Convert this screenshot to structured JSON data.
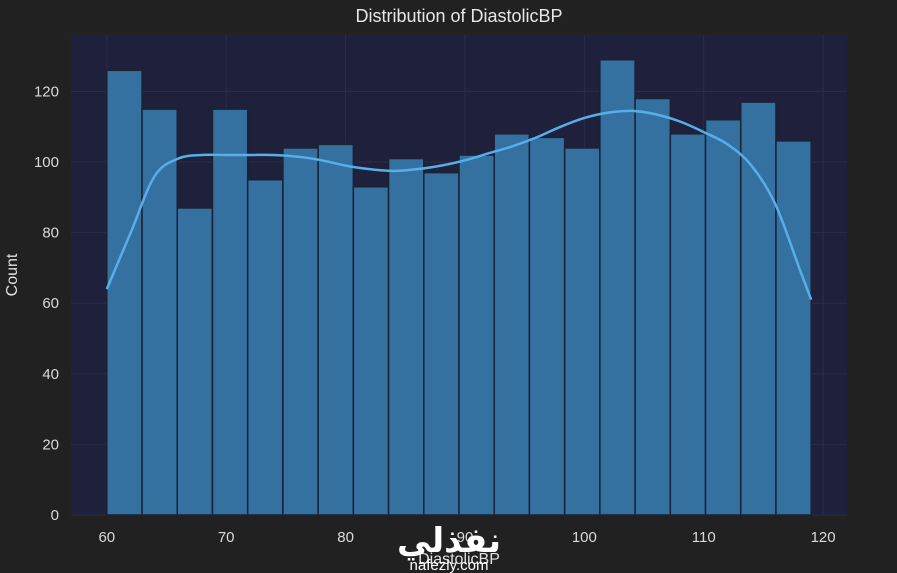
{
  "chart_data": {
    "type": "bar",
    "title": "Distribution of DiastolicBP",
    "xlabel": "DiastolicBP",
    "ylabel": "Count",
    "xlim": [
      57,
      122
    ],
    "ylim": [
      0,
      136
    ],
    "xticks": [
      60,
      70,
      80,
      90,
      100,
      110,
      120
    ],
    "yticks": [
      0,
      20,
      40,
      60,
      80,
      100,
      120
    ],
    "grid": true,
    "bins": {
      "edges": [
        60,
        62.95,
        65.9,
        68.85,
        71.8,
        74.75,
        77.7,
        80.65,
        83.6,
        86.55,
        89.5,
        92.45,
        95.4,
        98.35,
        101.3,
        104.25,
        107.2,
        110.15,
        113.1,
        116.05,
        119
      ],
      "counts": [
        126,
        115,
        87,
        115,
        95,
        104,
        105,
        93,
        101,
        97,
        102,
        108,
        107,
        104,
        129,
        118,
        108,
        112,
        117,
        106
      ]
    },
    "kde": {
      "x": [
        60,
        62,
        64,
        66,
        68,
        70,
        72,
        74,
        76,
        78,
        80,
        82,
        84,
        86,
        88,
        90,
        92,
        94,
        96,
        98,
        100,
        102,
        104,
        106,
        108,
        110,
        112,
        114,
        116,
        118,
        119
      ],
      "y": [
        64,
        80,
        96,
        101,
        102,
        102,
        102,
        102,
        101.5,
        100.5,
        99,
        98,
        97.5,
        98,
        99,
        100.5,
        102.5,
        104.5,
        107,
        110,
        112.5,
        114,
        114.5,
        113.5,
        111.5,
        108.5,
        105,
        99,
        88,
        70,
        61
      ]
    },
    "colors": {
      "background": "#212121",
      "plot_background": "#1f203b",
      "bar_fill": "#3470a0",
      "bar_edge": "#1a2233",
      "kde_line": "#58aee8",
      "grid": "#2a2d4a"
    }
  },
  "watermark": {
    "arabic": "نفذلي",
    "latin": "nafezly.com"
  }
}
